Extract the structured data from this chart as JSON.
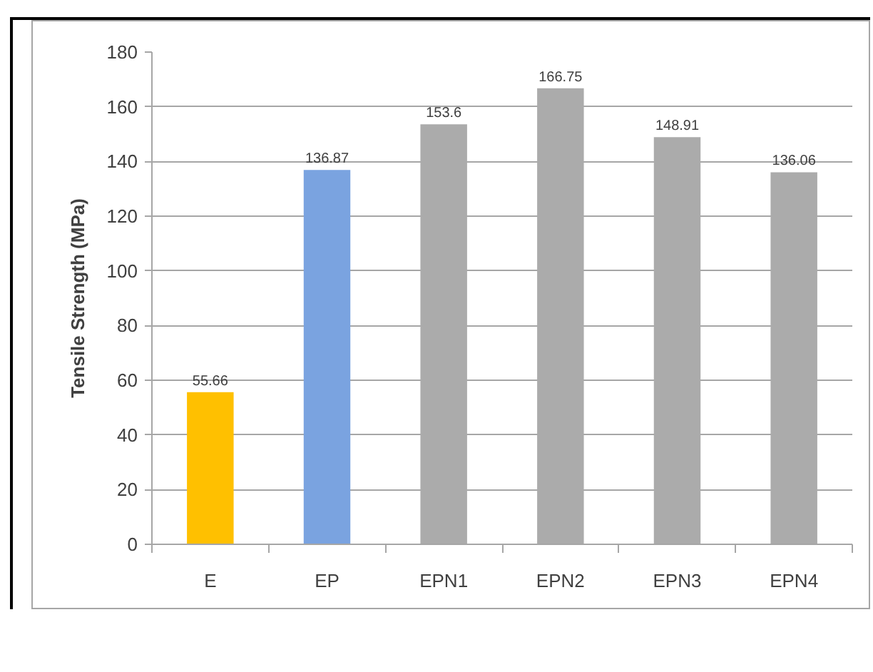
{
  "chart_data": {
    "type": "bar",
    "ylabel": "Tensile Strength (MPa)",
    "categories": [
      "E",
      "EP",
      "EPN1",
      "EPN2",
      "EPN3",
      "EPN4"
    ],
    "values": [
      55.66,
      136.87,
      153.6,
      166.75,
      148.91,
      136.06
    ],
    "colors": [
      "#ffc000",
      "#7aa3e0",
      "#ababab",
      "#ababab",
      "#ababab",
      "#ababab"
    ],
    "ylim": [
      0,
      180
    ],
    "yticks": [
      0,
      20,
      40,
      60,
      80,
      100,
      120,
      140,
      160,
      180
    ],
    "grid": "y",
    "data_labels": true
  }
}
